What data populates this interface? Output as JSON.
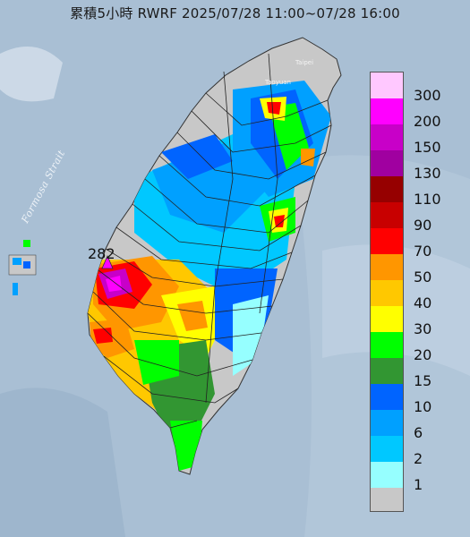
{
  "title": "累積5小時 RWRF 2025/07/28 11:00~07/28 16:00",
  "strait_label": "Formosa Strait",
  "place_labels": [
    "Taipei",
    "Taoyuan"
  ],
  "max_value_label": "282",
  "legend": [
    {
      "label": "300",
      "color": "#ffc8ff"
    },
    {
      "label": "200",
      "color": "#ff00ff"
    },
    {
      "label": "150",
      "color": "#c800c8"
    },
    {
      "label": "130",
      "color": "#a000a0"
    },
    {
      "label": "110",
      "color": "#960000"
    },
    {
      "label": "90",
      "color": "#c80000"
    },
    {
      "label": "70",
      "color": "#ff0000"
    },
    {
      "label": "50",
      "color": "#ff9600"
    },
    {
      "label": "40",
      "color": "#ffc800"
    },
    {
      "label": "30",
      "color": "#ffff00"
    },
    {
      "label": "20",
      "color": "#00ff00"
    },
    {
      "label": "15",
      "color": "#329632"
    },
    {
      "label": "10",
      "color": "#0064ff"
    },
    {
      "label": "6",
      "color": "#00a0ff"
    },
    {
      "label": "2",
      "color": "#00c8ff"
    },
    {
      "label": "1",
      "color": "#96ffff"
    },
    {
      "label": "",
      "color": "#c8c8c8"
    }
  ]
}
